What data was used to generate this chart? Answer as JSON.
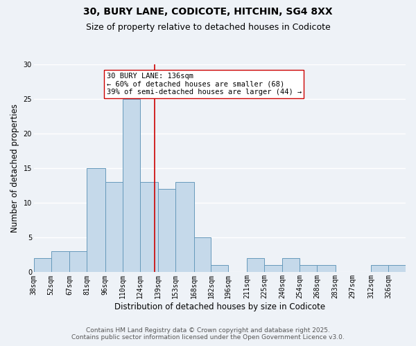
{
  "title": "30, BURY LANE, CODICOTE, HITCHIN, SG4 8XX",
  "subtitle": "Size of property relative to detached houses in Codicote",
  "xlabel": "Distribution of detached houses by size in Codicote",
  "ylabel": "Number of detached properties",
  "bin_labels": [
    "38sqm",
    "52sqm",
    "67sqm",
    "81sqm",
    "96sqm",
    "110sqm",
    "124sqm",
    "139sqm",
    "153sqm",
    "168sqm",
    "182sqm",
    "196sqm",
    "211sqm",
    "225sqm",
    "240sqm",
    "254sqm",
    "268sqm",
    "283sqm",
    "297sqm",
    "312sqm",
    "326sqm"
  ],
  "bin_edges": [
    38,
    52,
    67,
    81,
    96,
    110,
    124,
    139,
    153,
    168,
    182,
    196,
    211,
    225,
    240,
    254,
    268,
    283,
    297,
    312,
    326,
    340
  ],
  "counts": [
    2,
    3,
    3,
    15,
    13,
    25,
    13,
    12,
    13,
    5,
    1,
    0,
    2,
    1,
    2,
    1,
    1,
    0,
    0,
    1,
    1
  ],
  "bar_color": "#c5d9ea",
  "bar_edge_color": "#6699bb",
  "property_size": 136,
  "vline_color": "#cc0000",
  "annotation_line1": "30 BURY LANE: 136sqm",
  "annotation_line2": "← 60% of detached houses are smaller (68)",
  "annotation_line3": "39% of semi-detached houses are larger (44) →",
  "annotation_box_color": "#ffffff",
  "annotation_box_edge": "#cc0000",
  "ylim": [
    0,
    30
  ],
  "yticks": [
    0,
    5,
    10,
    15,
    20,
    25,
    30
  ],
  "footer_line1": "Contains HM Land Registry data © Crown copyright and database right 2025.",
  "footer_line2": "Contains public sector information licensed under the Open Government Licence v3.0.",
  "bg_color": "#eef2f7",
  "grid_color": "#ffffff",
  "title_fontsize": 10,
  "subtitle_fontsize": 9,
  "axis_label_fontsize": 8.5,
  "tick_fontsize": 7,
  "annotation_fontsize": 7.5,
  "footer_fontsize": 6.5
}
